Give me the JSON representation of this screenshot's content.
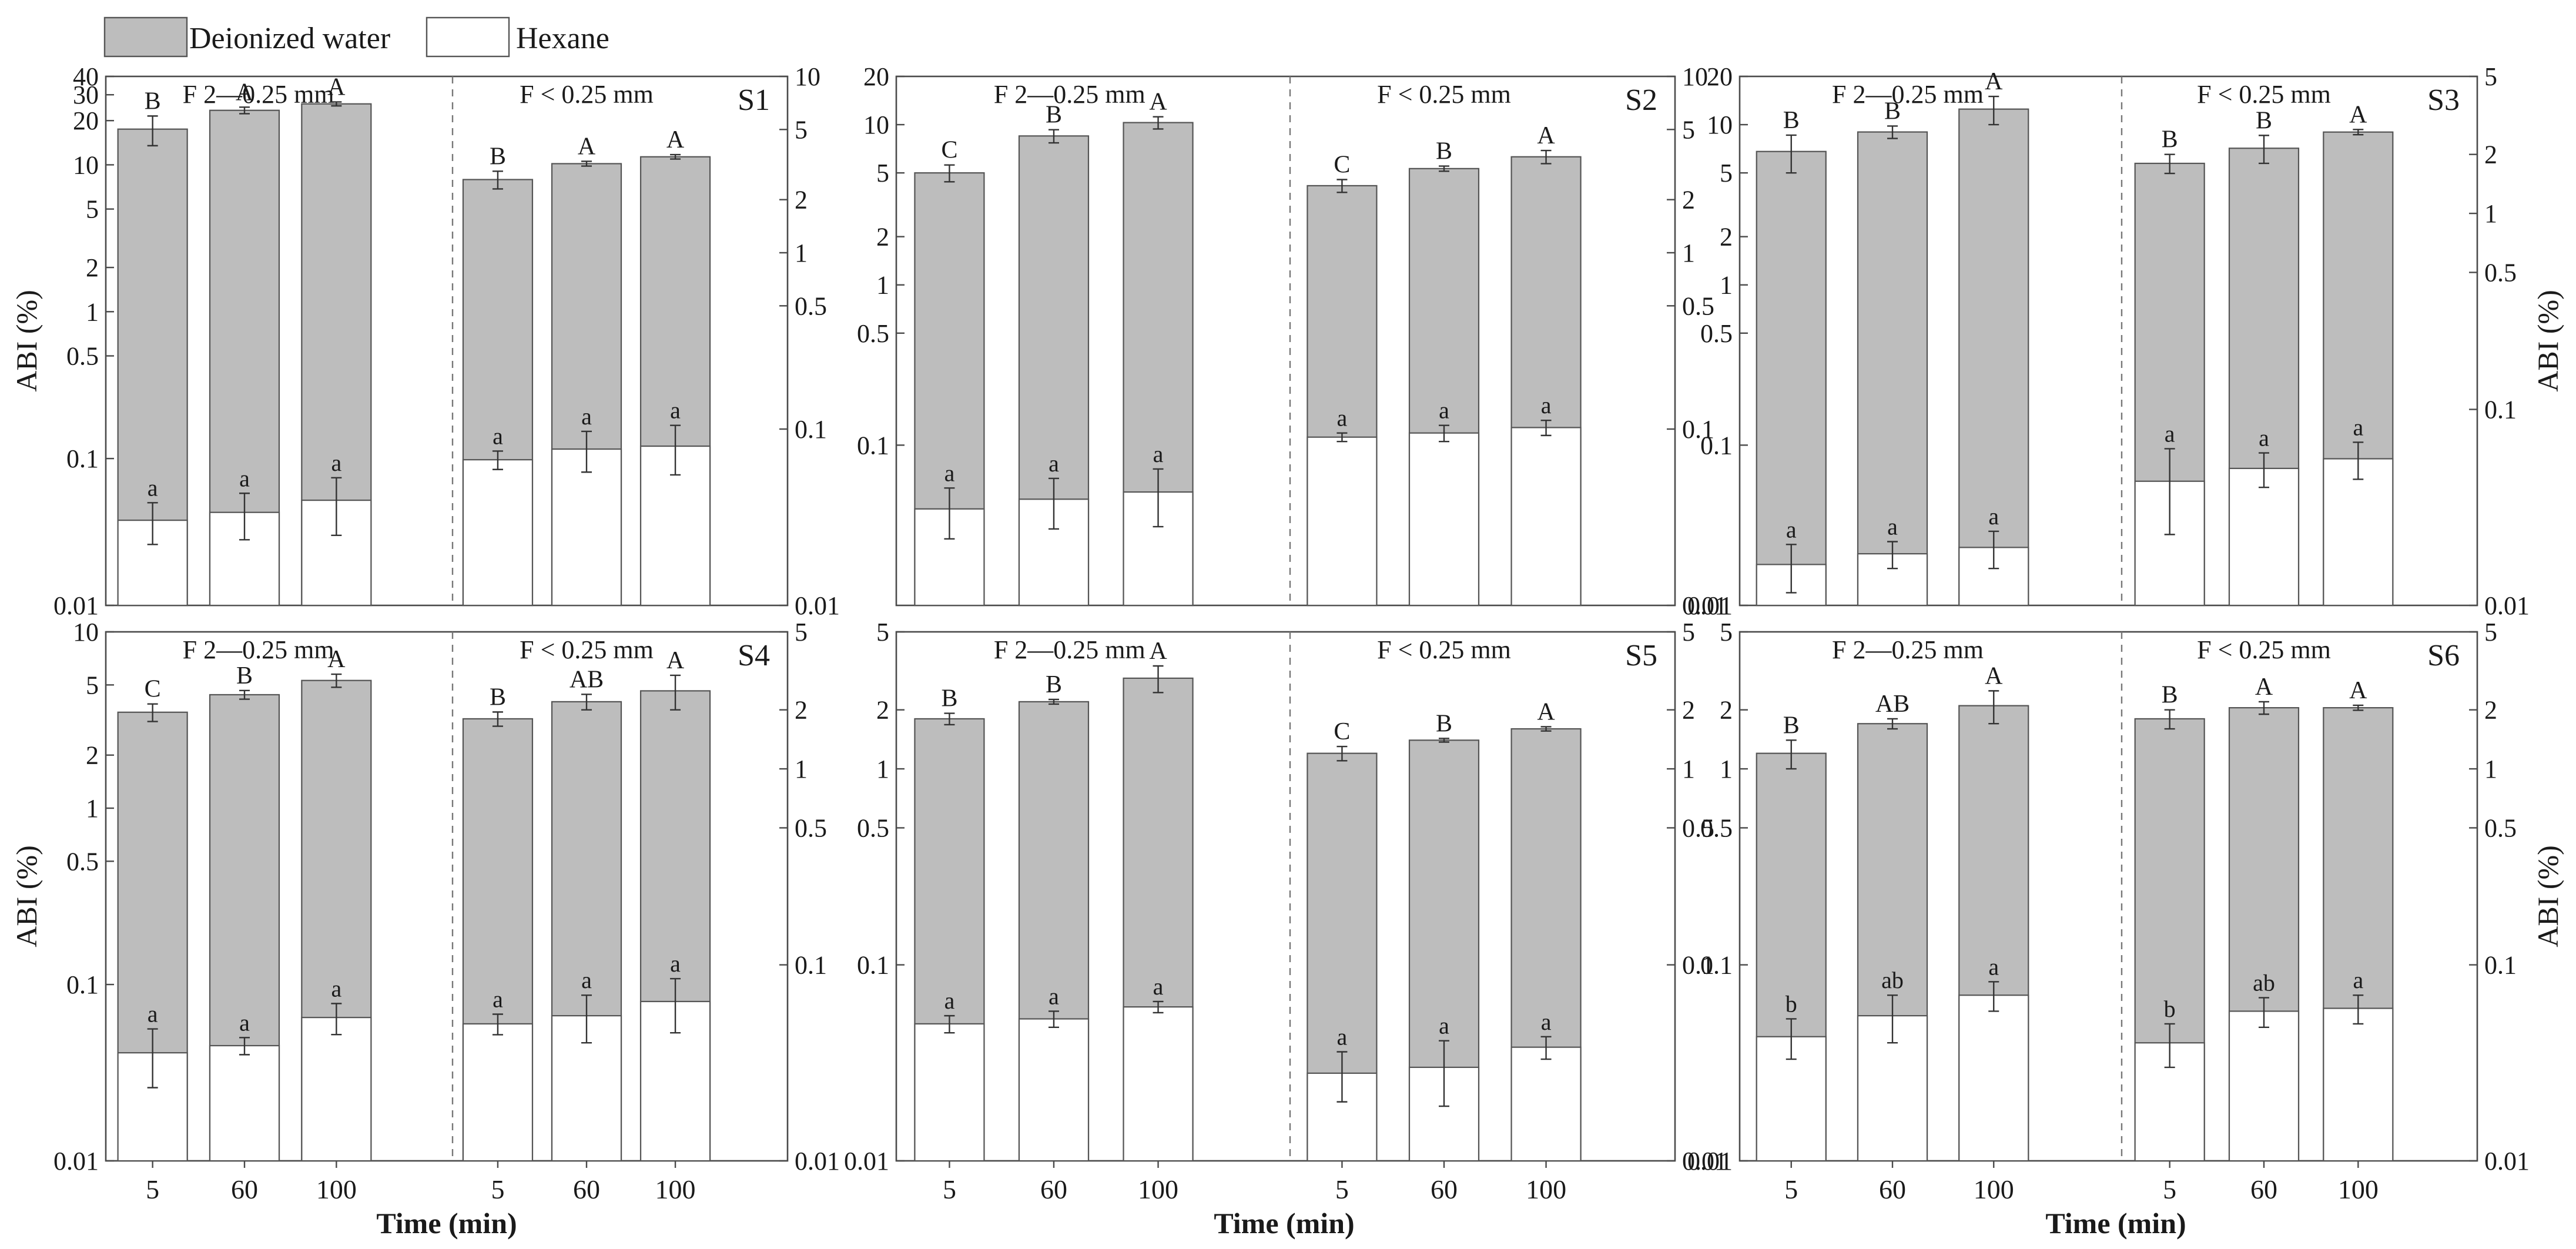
{
  "legend": {
    "deionized_label": "Deionized water",
    "hexane_label": "Hexane",
    "deionized_color": "#bdbdbd",
    "hexane_color": "#ffffff"
  },
  "axis_text": {
    "ylabel": "ABI (%)",
    "xlabel": "Time (min)",
    "time_ticks": [
      "5",
      "60",
      "100"
    ]
  },
  "chart_data": [
    {
      "type": "bar",
      "panel": "S1",
      "title": "S1",
      "yscale": "log",
      "categories": [
        "5",
        "60",
        "100"
      ],
      "left": {
        "fraction_label": "F 2—0.25 mm",
        "ylim": [
          0.01,
          40
        ],
        "yticks": [
          0.01,
          0.1,
          0.5,
          1,
          2,
          5,
          10,
          20,
          30,
          40
        ],
        "deionized": [
          17.5,
          23.5,
          26.0
        ],
        "deionized_err": [
          4.0,
          1.2,
          0.8
        ],
        "deionized_letters": [
          "B",
          "A",
          "A"
        ],
        "hexane": [
          0.038,
          0.043,
          0.052
        ],
        "hexane_err": [
          0.012,
          0.015,
          0.022
        ],
        "hexane_letters": [
          "a",
          "a",
          "a"
        ]
      },
      "right": {
        "fraction_label": "F < 0.25 mm",
        "ylim": [
          0.01,
          10
        ],
        "yticks": [
          0.01,
          0.1,
          0.5,
          1,
          2,
          5,
          10
        ],
        "deionized": [
          2.6,
          3.2,
          3.5
        ],
        "deionized_err": [
          0.3,
          0.1,
          0.1
        ],
        "deionized_letters": [
          "B",
          "A",
          "A"
        ],
        "hexane": [
          0.067,
          0.077,
          0.08
        ],
        "hexane_err": [
          0.008,
          0.02,
          0.025
        ],
        "hexane_letters": [
          "a",
          "a",
          "a"
        ]
      }
    },
    {
      "type": "bar",
      "panel": "S2",
      "title": "S2",
      "yscale": "log",
      "categories": [
        "5",
        "60",
        "100"
      ],
      "left": {
        "fraction_label": "F 2—0.25 mm",
        "ylim": [
          0.01,
          20
        ],
        "yticks": [
          0.1,
          0.5,
          1,
          2,
          5,
          10,
          20
        ],
        "deionized": [
          5.0,
          8.5,
          10.3
        ],
        "deionized_err": [
          0.6,
          0.8,
          0.9
        ],
        "deionized_letters": [
          "C",
          "B",
          "A"
        ],
        "hexane": [
          0.04,
          0.046,
          0.051
        ],
        "hexane_err": [
          0.014,
          0.016,
          0.02
        ],
        "hexane_letters": [
          "a",
          "a",
          "a"
        ]
      },
      "right": {
        "fraction_label": "F < 0.25 mm",
        "ylim": [
          0.01,
          10
        ],
        "yticks": [
          0.01,
          0.1,
          0.5,
          1,
          2,
          5,
          10
        ],
        "deionized": [
          2.4,
          3.0,
          3.5
        ],
        "deionized_err": [
          0.2,
          0.1,
          0.3
        ],
        "deionized_letters": [
          "C",
          "B",
          "A"
        ],
        "hexane": [
          0.09,
          0.095,
          0.102
        ],
        "hexane_err": [
          0.005,
          0.01,
          0.01
        ],
        "hexane_letters": [
          "a",
          "a",
          "a"
        ]
      }
    },
    {
      "type": "bar",
      "panel": "S3",
      "title": "S3",
      "yscale": "log",
      "categories": [
        "5",
        "60",
        "100"
      ],
      "left": {
        "fraction_label": "F 2—0.25 mm",
        "ylim": [
          0.01,
          20
        ],
        "yticks": [
          0.01,
          0.1,
          0.5,
          1,
          2,
          5,
          10,
          20
        ],
        "deionized": [
          6.8,
          9.0,
          12.5
        ],
        "deionized_err": [
          1.8,
          0.8,
          2.5
        ],
        "deionized_letters": [
          "B",
          "B",
          "A"
        ],
        "hexane": [
          0.018,
          0.021,
          0.023
        ],
        "hexane_err": [
          0.006,
          0.004,
          0.006
        ],
        "hexane_letters": [
          "a",
          "a",
          "a"
        ]
      },
      "right": {
        "fraction_label": "F < 0.25 mm",
        "ylim": [
          0.01,
          5
        ],
        "yticks": [
          0.01,
          0.1,
          0.5,
          1,
          2,
          5
        ],
        "deionized": [
          1.8,
          2.15,
          2.6
        ],
        "deionized_err": [
          0.2,
          0.35,
          0.08
        ],
        "deionized_letters": [
          "B",
          "B",
          "A"
        ],
        "hexane": [
          0.043,
          0.05,
          0.056
        ],
        "hexane_err": [
          0.02,
          0.01,
          0.012
        ],
        "hexane_letters": [
          "a",
          "a",
          "a"
        ]
      }
    },
    {
      "type": "bar",
      "panel": "S4",
      "title": "S4",
      "yscale": "log",
      "categories": [
        "5",
        "60",
        "100"
      ],
      "left": {
        "fraction_label": "F 2—0.25 mm",
        "ylim": [
          0.01,
          10
        ],
        "yticks": [
          0.01,
          0.1,
          0.5,
          1,
          2,
          5,
          10
        ],
        "deionized": [
          3.5,
          4.4,
          5.3
        ],
        "deionized_err": [
          0.4,
          0.25,
          0.45
        ],
        "deionized_letters": [
          "C",
          "B",
          "A"
        ],
        "hexane": [
          0.041,
          0.045,
          0.065
        ],
        "hexane_err": [
          0.015,
          0.005,
          0.013
        ],
        "hexane_letters": [
          "a",
          "a",
          "a"
        ]
      },
      "right": {
        "fraction_label": "F < 0.25 mm",
        "ylim": [
          0.01,
          5
        ],
        "yticks": [
          0.01,
          0.1,
          0.5,
          1,
          2,
          5
        ],
        "deionized": [
          1.8,
          2.2,
          2.5
        ],
        "deionized_err": [
          0.15,
          0.2,
          0.5
        ],
        "deionized_letters": [
          "B",
          "AB",
          "A"
        ],
        "hexane": [
          0.05,
          0.055,
          0.065
        ],
        "hexane_err": [
          0.006,
          0.015,
          0.02
        ],
        "hexane_letters": [
          "a",
          "a",
          "a"
        ]
      }
    },
    {
      "type": "bar",
      "panel": "S5",
      "title": "S5",
      "yscale": "log",
      "categories": [
        "5",
        "60",
        "100"
      ],
      "left": {
        "fraction_label": "F 2—0.25 mm",
        "ylim": [
          0.01,
          5
        ],
        "yticks": [
          0.01,
          0.1,
          0.5,
          1,
          2,
          5
        ],
        "deionized": [
          1.8,
          2.2,
          2.9
        ],
        "deionized_err": [
          0.12,
          0.06,
          0.45
        ],
        "deionized_letters": [
          "B",
          "B",
          "A"
        ],
        "hexane": [
          0.05,
          0.053,
          0.061
        ],
        "hexane_err": [
          0.005,
          0.005,
          0.004
        ],
        "hexane_letters": [
          "a",
          "a",
          "a"
        ]
      },
      "right": {
        "fraction_label": "F < 0.25 mm",
        "ylim": [
          0.01,
          5
        ],
        "yticks": [
          0.01,
          0.1,
          0.5,
          1,
          2,
          5
        ],
        "deionized": [
          1.2,
          1.4,
          1.6
        ],
        "deionized_err": [
          0.1,
          0.03,
          0.04
        ],
        "deionized_letters": [
          "C",
          "B",
          "A"
        ],
        "hexane": [
          0.028,
          0.03,
          0.038
        ],
        "hexane_err": [
          0.008,
          0.011,
          0.005
        ],
        "hexane_letters": [
          "a",
          "a",
          "a"
        ]
      }
    },
    {
      "type": "bar",
      "panel": "S6",
      "title": "S6",
      "yscale": "log",
      "categories": [
        "5",
        "60",
        "100"
      ],
      "left": {
        "fraction_label": "F 2—0.25 mm",
        "ylim": [
          0.01,
          5
        ],
        "yticks": [
          0.01,
          0.1,
          0.5,
          1,
          2,
          5
        ],
        "deionized": [
          1.2,
          1.7,
          2.1
        ],
        "deionized_err": [
          0.2,
          0.1,
          0.4
        ],
        "deionized_letters": [
          "B",
          "AB",
          "A"
        ],
        "hexane": [
          0.043,
          0.055,
          0.07
        ],
        "hexane_err": [
          0.01,
          0.015,
          0.012
        ],
        "hexane_letters": [
          "b",
          "ab",
          "a"
        ]
      },
      "right": {
        "fraction_label": "F < 0.25 mm",
        "ylim": [
          0.01,
          5
        ],
        "yticks": [
          0.01,
          0.1,
          0.5,
          1,
          2,
          5
        ],
        "deionized": [
          1.8,
          2.05,
          2.05
        ],
        "deionized_err": [
          0.2,
          0.15,
          0.06
        ],
        "deionized_letters": [
          "B",
          "A",
          "A"
        ],
        "hexane": [
          0.04,
          0.058,
          0.06
        ],
        "hexane_err": [
          0.01,
          0.01,
          0.01
        ],
        "hexane_letters": [
          "b",
          "ab",
          "a"
        ]
      }
    }
  ]
}
